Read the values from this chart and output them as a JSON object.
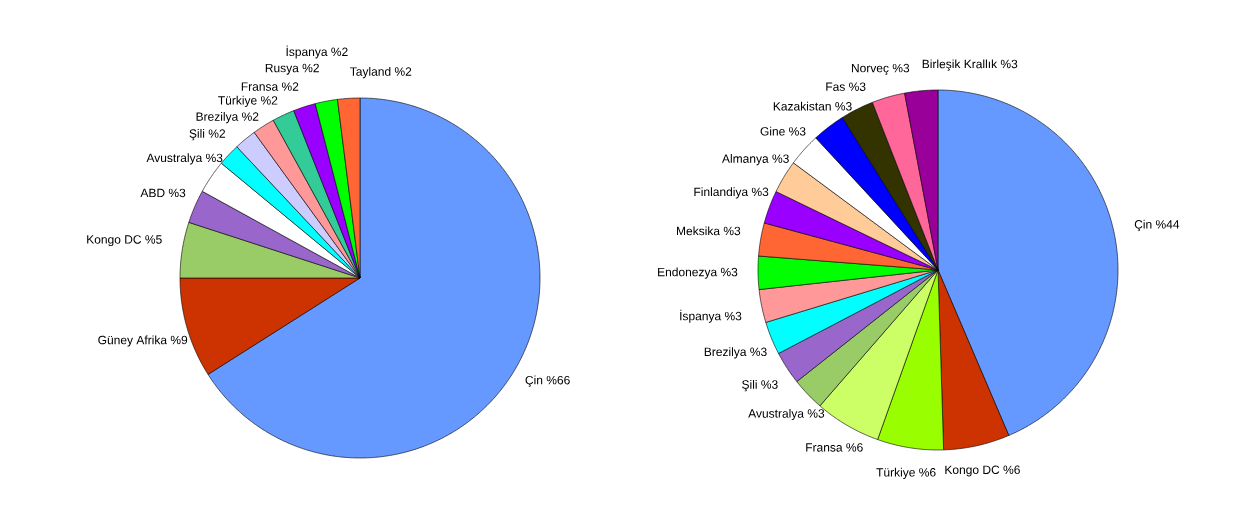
{
  "chart_data": [
    {
      "type": "pie",
      "categories": [
        "Çin",
        "Güney Afrika",
        "Kongo DC",
        "ABD",
        "Avustralya",
        "Şili",
        "Brezilya",
        "Türkiye",
        "Fransa",
        "Rusya",
        "İspanya",
        "Tayland"
      ],
      "values": [
        66,
        9,
        5,
        3,
        3,
        2,
        2,
        2,
        2,
        2,
        2,
        2
      ],
      "value_labels": [
        "%66",
        "%9",
        "%5",
        "%3",
        "%3",
        "%2",
        "%2",
        "%2",
        "%2",
        "%2",
        "%2",
        "%2"
      ],
      "colors": [
        "#6699ff",
        "#cc3300",
        "#99cc66",
        "#9966cc",
        "#ffffff",
        "#00ffff",
        "#ccccff",
        "#ff9999",
        "#33cc99",
        "#9900ff",
        "#00ff00",
        "#ff6633"
      ]
    },
    {
      "type": "pie",
      "categories": [
        "Çin",
        "Kongo DC",
        "Türkiye",
        "Fransa",
        "Avustralya",
        "Şili",
        "Brezilya",
        "İspanya",
        "Endonezya",
        "Meksika",
        "Finlandiya",
        "Almanya",
        "Gine",
        "Kazakistan",
        "Fas",
        "Norveç",
        "Birleşik Krallık"
      ],
      "values": [
        44,
        6,
        6,
        6,
        3,
        3,
        3,
        3,
        3,
        3,
        3,
        3,
        3,
        3,
        3,
        3,
        3
      ],
      "value_labels": [
        "%44",
        "%6",
        "%6",
        "%6",
        "%3",
        "%3",
        "%3",
        "%3",
        "%3",
        "%3",
        "%3",
        "%3",
        "%3",
        "%3",
        "%3",
        "%3",
        "%3"
      ],
      "colors": [
        "#6699ff",
        "#cc3300",
        "#99ff00",
        "#ccff66",
        "#99cc66",
        "#9966cc",
        "#00ffff",
        "#ff9999",
        "#00ff00",
        "#ff6633",
        "#9900ff",
        "#ffcc99",
        "#ffffff",
        "#0000ff",
        "#333300",
        "#ff6699",
        "#990099"
      ]
    }
  ]
}
